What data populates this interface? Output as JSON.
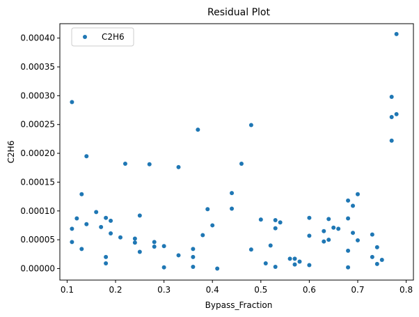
{
  "chart_data": {
    "type": "scatter",
    "title": "Residual Plot",
    "xlabel": "Bypass_Fraction",
    "ylabel": "C2H6",
    "xlim": [
      0.085,
      0.815
    ],
    "ylim": [
      -2e-05,
      0.000425
    ],
    "xticks": [
      0.1,
      0.2,
      0.3,
      0.4,
      0.5,
      0.6,
      0.7,
      0.8
    ],
    "xtick_labels": [
      "0.1",
      "0.2",
      "0.3",
      "0.4",
      "0.5",
      "0.6",
      "0.7",
      "0.8"
    ],
    "yticks": [
      0,
      5e-05,
      0.0001,
      0.00015,
      0.0002,
      0.00025,
      0.0003,
      0.00035,
      0.0004
    ],
    "ytick_labels": [
      "0.00000",
      "0.00005",
      "0.00010",
      "0.00015",
      "0.00020",
      "0.00025",
      "0.00030",
      "0.00035",
      "0.00040"
    ],
    "grid": false,
    "legend": {
      "position": "top-left",
      "entries": [
        "C2H6"
      ]
    },
    "series": [
      {
        "name": "C2H6",
        "color": "#1f77b4",
        "points": [
          [
            0.11,
            0.000289
          ],
          [
            0.11,
            6.9e-05
          ],
          [
            0.11,
            4.6e-05
          ],
          [
            0.12,
            8.7e-05
          ],
          [
            0.13,
            0.000129
          ],
          [
            0.13,
            3.4e-05
          ],
          [
            0.14,
            0.000195
          ],
          [
            0.14,
            7.7e-05
          ],
          [
            0.16,
            9.8e-05
          ],
          [
            0.17,
            7.2e-05
          ],
          [
            0.18,
            8.8e-05
          ],
          [
            0.18,
            2e-05
          ],
          [
            0.18,
            9e-06
          ],
          [
            0.19,
            8.3e-05
          ],
          [
            0.19,
            6.1e-05
          ],
          [
            0.21,
            5.4e-05
          ],
          [
            0.22,
            0.000182
          ],
          [
            0.24,
            5.2e-05
          ],
          [
            0.24,
            4.5e-05
          ],
          [
            0.25,
            9.2e-05
          ],
          [
            0.25,
            2.9e-05
          ],
          [
            0.27,
            0.000181
          ],
          [
            0.28,
            4.6e-05
          ],
          [
            0.28,
            3.8e-05
          ],
          [
            0.3,
            3.9e-05
          ],
          [
            0.3,
            2e-06
          ],
          [
            0.33,
            0.000176
          ],
          [
            0.33,
            2.3e-05
          ],
          [
            0.36,
            3.4e-05
          ],
          [
            0.36,
            2e-05
          ],
          [
            0.36,
            3e-06
          ],
          [
            0.37,
            0.000241
          ],
          [
            0.38,
            5.8e-05
          ],
          [
            0.39,
            0.000103
          ],
          [
            0.4,
            7.5e-05
          ],
          [
            0.41,
            0.0
          ],
          [
            0.44,
            0.000131
          ],
          [
            0.44,
            0.000104
          ],
          [
            0.46,
            0.000182
          ],
          [
            0.48,
            0.000249
          ],
          [
            0.48,
            3.3e-05
          ],
          [
            0.5,
            8.5e-05
          ],
          [
            0.51,
            9e-06
          ],
          [
            0.52,
            4e-05
          ],
          [
            0.53,
            8.4e-05
          ],
          [
            0.53,
            7e-05
          ],
          [
            0.53,
            3e-06
          ],
          [
            0.54,
            8e-05
          ],
          [
            0.56,
            1.7e-05
          ],
          [
            0.57,
            1.7e-05
          ],
          [
            0.57,
            7e-06
          ],
          [
            0.58,
            1.2e-05
          ],
          [
            0.6,
            8.8e-05
          ],
          [
            0.6,
            5.7e-05
          ],
          [
            0.6,
            6e-06
          ],
          [
            0.63,
            6.5e-05
          ],
          [
            0.63,
            4.7e-05
          ],
          [
            0.64,
            8.6e-05
          ],
          [
            0.64,
            5e-05
          ],
          [
            0.65,
            7.1e-05
          ],
          [
            0.66,
            6.9e-05
          ],
          [
            0.68,
            0.000118
          ],
          [
            0.68,
            8.7e-05
          ],
          [
            0.68,
            3.1e-05
          ],
          [
            0.68,
            2e-06
          ],
          [
            0.69,
            0.000109
          ],
          [
            0.69,
            6.2e-05
          ],
          [
            0.7,
            0.000129
          ],
          [
            0.7,
            4.9e-05
          ],
          [
            0.73,
            5.9e-05
          ],
          [
            0.73,
            2e-05
          ],
          [
            0.74,
            3.7e-05
          ],
          [
            0.74,
            8e-06
          ],
          [
            0.75,
            1.5e-05
          ],
          [
            0.77,
            0.000298
          ],
          [
            0.77,
            0.000263
          ],
          [
            0.77,
            0.000222
          ],
          [
            0.78,
            0.000407
          ],
          [
            0.78,
            0.000268
          ]
        ]
      }
    ]
  }
}
